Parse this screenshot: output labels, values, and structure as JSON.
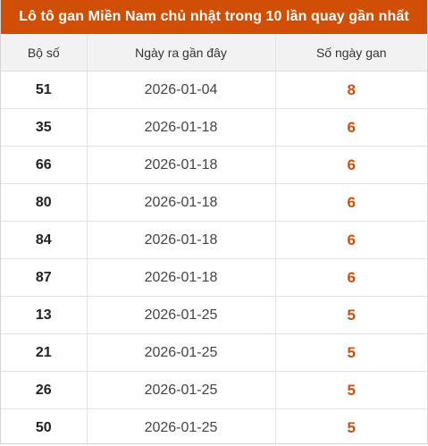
{
  "title": "Lô tô gan Miền Nam chủ nhật trong 10 lần quay gần nhất",
  "headers": {
    "bo_so": "Bộ số",
    "ngay_ra": "Ngày ra gần đây",
    "so_ngay_gan": "Số ngày gan"
  },
  "colors": {
    "accent": "#d04e06",
    "gan_high": "#d04e06",
    "gan_normal": "#d25a10"
  },
  "rows": [
    {
      "bo_so": "51",
      "ngay_ra": "2026-01-04",
      "so_ngay_gan": "8"
    },
    {
      "bo_so": "35",
      "ngay_ra": "2026-01-18",
      "so_ngay_gan": "6"
    },
    {
      "bo_so": "66",
      "ngay_ra": "2026-01-18",
      "so_ngay_gan": "6"
    },
    {
      "bo_so": "80",
      "ngay_ra": "2026-01-18",
      "so_ngay_gan": "6"
    },
    {
      "bo_so": "84",
      "ngay_ra": "2026-01-18",
      "so_ngay_gan": "6"
    },
    {
      "bo_so": "87",
      "ngay_ra": "2026-01-18",
      "so_ngay_gan": "6"
    },
    {
      "bo_so": "13",
      "ngay_ra": "2026-01-25",
      "so_ngay_gan": "5"
    },
    {
      "bo_so": "21",
      "ngay_ra": "2026-01-25",
      "so_ngay_gan": "5"
    },
    {
      "bo_so": "26",
      "ngay_ra": "2026-01-25",
      "so_ngay_gan": "5"
    },
    {
      "bo_so": "50",
      "ngay_ra": "2026-01-25",
      "so_ngay_gan": "5"
    }
  ]
}
